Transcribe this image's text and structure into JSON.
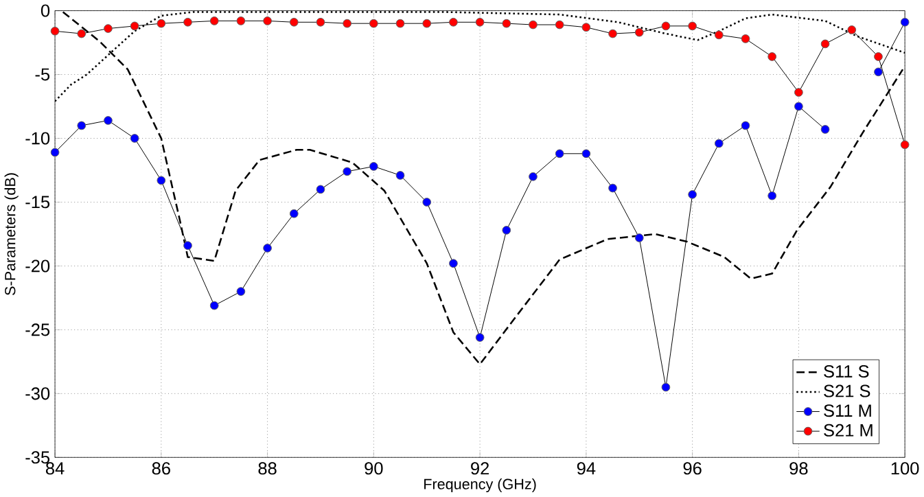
{
  "chart_data": {
    "type": "line",
    "xlabel": "Frequency (GHz)",
    "ylabel": "S-Parameters (dB)",
    "xlim": [
      84,
      100
    ],
    "ylim": [
      -35,
      0
    ],
    "xticks": [
      84,
      86,
      88,
      90,
      92,
      94,
      96,
      98,
      100
    ],
    "yticks": [
      -35,
      -30,
      -25,
      -20,
      -15,
      -10,
      -5,
      0
    ],
    "grid": true,
    "legend": "bottom right",
    "series": [
      {
        "name": "S11 S",
        "color": "#000000",
        "line_style": "dashed",
        "marker": "none",
        "x": [
          84.15,
          84.84,
          85.37,
          86.0,
          86.35,
          86.5,
          87.0,
          87.4,
          87.85,
          88.55,
          88.8,
          89.6,
          90.2,
          91.0,
          91.5,
          92.0,
          92.6,
          93.5,
          94.4,
          95.3,
          95.9,
          96.6,
          97.1,
          97.5,
          97.97,
          98.6,
          99.2,
          99.96
        ],
        "values": [
          -0.1,
          -2.4,
          -4.6,
          -10.0,
          -16.4,
          -19.3,
          -19.6,
          -14.1,
          -11.7,
          -10.9,
          -10.9,
          -11.9,
          -14.1,
          -19.8,
          -25.2,
          -27.7,
          -24.4,
          -19.5,
          -17.9,
          -17.5,
          -18.1,
          -19.3,
          -21.0,
          -20.6,
          -17.2,
          -13.8,
          -9.6,
          -4.6
        ]
      },
      {
        "name": "S21 S",
        "color": "#000000",
        "line_style": "dotted",
        "marker": "none",
        "x": [
          84.0,
          84.3,
          84.6,
          85.1,
          85.5,
          86.0,
          86.6,
          88.0,
          90.0,
          91.3,
          93.5,
          94.6,
          95.5,
          96.1,
          96.5,
          97.0,
          97.5,
          98.5,
          99.1,
          100.0
        ],
        "values": [
          -7.1,
          -5.8,
          -5.0,
          -3.1,
          -1.6,
          -0.4,
          -0.1,
          -0.1,
          -0.1,
          -0.1,
          -0.3,
          -0.9,
          -1.8,
          -2.3,
          -1.6,
          -0.6,
          -0.3,
          -0.8,
          -2.0,
          -3.3
        ]
      },
      {
        "name": "S11 M",
        "color": "#0000ff",
        "line_style": "solid",
        "marker": "circle",
        "x": [
          84,
          84.5,
          85,
          85.5,
          86,
          86.5,
          87,
          87.5,
          88,
          88.5,
          89,
          89.5,
          90,
          90.5,
          91,
          91.5,
          92,
          92.5,
          93,
          93.5,
          94,
          94.5,
          95,
          95.5,
          96,
          96.5,
          97,
          97.5,
          98,
          98.5,
          99,
          99.5,
          100
        ],
        "values": [
          -11.1,
          -9.0,
          -8.6,
          -10.0,
          -13.3,
          -18.4,
          -23.1,
          -22.0,
          -18.6,
          -15.9,
          -14.0,
          -12.6,
          -12.2,
          -12.9,
          -15.0,
          -19.8,
          -25.6,
          -17.2,
          -13.0,
          -11.2,
          -11.2,
          -13.9,
          -17.8,
          -29.5,
          -14.4,
          -10.4,
          -9.0,
          -14.5,
          -7.5,
          -9.3,
          null,
          -4.8,
          -0.9
        ]
      },
      {
        "name": "S21 M",
        "color": "#ff0000",
        "line_style": "solid",
        "marker": "circle",
        "x": [
          84,
          84.5,
          85,
          85.5,
          86,
          86.5,
          87,
          87.5,
          88,
          88.5,
          89,
          89.5,
          90,
          90.5,
          91,
          91.5,
          92,
          92.5,
          93,
          93.5,
          94,
          94.5,
          95,
          95.5,
          96,
          96.5,
          97,
          97.5,
          98,
          98.5,
          99,
          99.5,
          100
        ],
        "values": [
          -1.6,
          -1.8,
          -1.4,
          -1.2,
          -1.0,
          -0.9,
          -0.8,
          -0.8,
          -0.8,
          -0.9,
          -0.9,
          -1.0,
          -1.0,
          -1.0,
          -1.0,
          -0.9,
          -0.9,
          -1.0,
          -1.1,
          -1.1,
          -1.3,
          -1.8,
          -1.7,
          -1.2,
          -1.2,
          -1.9,
          -2.2,
          -3.6,
          -6.4,
          -2.6,
          -1.5,
          -3.6,
          -10.5
        ]
      }
    ]
  }
}
